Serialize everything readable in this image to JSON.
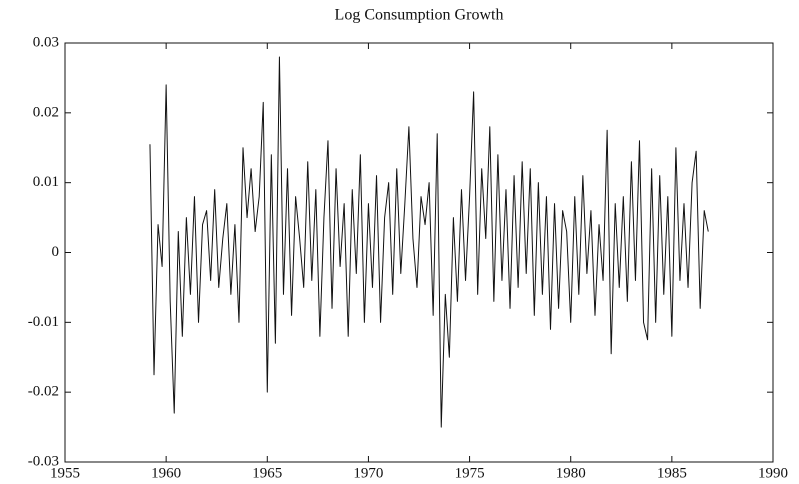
{
  "chart_data": {
    "type": "line",
    "title": "Log Consumption Growth",
    "x": [
      1959.2,
      1959.4,
      1959.6,
      1959.8,
      1960.0,
      1960.2,
      1960.4,
      1960.6,
      1960.8,
      1961.0,
      1961.2,
      1961.4,
      1961.6,
      1961.8,
      1962.0,
      1962.2,
      1962.4,
      1962.6,
      1962.8,
      1963.0,
      1963.2,
      1963.4,
      1963.6,
      1963.8,
      1964.0,
      1964.2,
      1964.4,
      1964.6,
      1964.8,
      1965.0,
      1965.2,
      1965.4,
      1965.6,
      1965.8,
      1966.0,
      1966.2,
      1966.4,
      1966.6,
      1966.8,
      1967.0,
      1967.2,
      1967.4,
      1967.6,
      1967.8,
      1968.0,
      1968.2,
      1968.4,
      1968.6,
      1968.8,
      1969.0,
      1969.2,
      1969.4,
      1969.6,
      1969.8,
      1970.0,
      1970.2,
      1970.4,
      1970.6,
      1970.8,
      1971.0,
      1971.2,
      1971.4,
      1971.6,
      1971.8,
      1972.0,
      1972.2,
      1972.4,
      1972.6,
      1972.8,
      1973.0,
      1973.2,
      1973.4,
      1973.6,
      1973.8,
      1974.0,
      1974.2,
      1974.4,
      1974.6,
      1974.8,
      1975.0,
      1975.2,
      1975.4,
      1975.6,
      1975.8,
      1976.0,
      1976.2,
      1976.4,
      1976.6,
      1976.8,
      1977.0,
      1977.2,
      1977.4,
      1977.6,
      1977.8,
      1978.0,
      1978.2,
      1978.4,
      1978.6,
      1978.8,
      1979.0,
      1979.2,
      1979.4,
      1979.6,
      1979.8,
      1980.0,
      1980.2,
      1980.4,
      1980.6,
      1980.8,
      1981.0,
      1981.2,
      1981.4,
      1981.6,
      1981.8,
      1982.0,
      1982.2,
      1982.4,
      1982.6,
      1982.8,
      1983.0,
      1983.2,
      1983.4,
      1983.6,
      1983.8,
      1984.0,
      1984.2,
      1984.4,
      1984.6,
      1984.8,
      1985.0,
      1985.2,
      1985.4,
      1985.6,
      1985.8,
      1986.0,
      1986.2,
      1986.4,
      1986.6,
      1986.8
    ],
    "series": [
      {
        "color": "#111111",
        "values": [
          0.0155,
          -0.0175,
          0.004,
          -0.002,
          0.024,
          -0.007,
          -0.023,
          0.003,
          -0.012,
          0.005,
          -0.006,
          0.008,
          -0.01,
          0.004,
          0.006,
          -0.004,
          0.009,
          -0.005,
          0.002,
          0.007,
          -0.006,
          0.004,
          -0.01,
          0.015,
          0.005,
          0.012,
          0.003,
          0.008,
          0.0215,
          -0.02,
          0.014,
          -0.013,
          0.028,
          -0.006,
          0.012,
          -0.009,
          0.008,
          0.002,
          -0.005,
          0.013,
          -0.004,
          0.009,
          -0.012,
          0.005,
          0.016,
          -0.008,
          0.012,
          -0.002,
          0.007,
          -0.012,
          0.009,
          -0.003,
          0.014,
          -0.01,
          0.007,
          -0.005,
          0.011,
          -0.01,
          0.005,
          0.01,
          -0.006,
          0.012,
          -0.003,
          0.007,
          0.018,
          0.002,
          -0.005,
          0.008,
          0.004,
          0.01,
          -0.009,
          0.017,
          -0.025,
          -0.006,
          -0.015,
          0.005,
          -0.007,
          0.009,
          -0.004,
          0.008,
          0.023,
          -0.006,
          0.012,
          0.002,
          0.018,
          -0.007,
          0.014,
          -0.004,
          0.009,
          -0.008,
          0.011,
          -0.005,
          0.013,
          -0.003,
          0.012,
          -0.009,
          0.01,
          -0.006,
          0.008,
          -0.011,
          0.007,
          -0.008,
          0.006,
          0.003,
          -0.01,
          0.008,
          -0.006,
          0.011,
          -0.003,
          0.006,
          -0.009,
          0.004,
          -0.004,
          0.0175,
          -0.0145,
          0.007,
          -0.005,
          0.008,
          -0.007,
          0.013,
          -0.004,
          0.016,
          -0.01,
          -0.0125,
          0.012,
          -0.01,
          0.011,
          -0.006,
          0.008,
          -0.012,
          0.015,
          -0.004,
          0.007,
          -0.005,
          0.01,
          0.0145,
          -0.008,
          0.006,
          0.003
        ]
      }
    ],
    "xlim": [
      1955,
      1990
    ],
    "xticks": [
      1955,
      1960,
      1965,
      1970,
      1975,
      1980,
      1985,
      1990
    ],
    "ylim": [
      -0.03,
      0.03
    ],
    "yticks": [
      -0.03,
      -0.02,
      -0.01,
      0,
      0.01,
      0.02,
      0.03
    ],
    "grid": false
  }
}
